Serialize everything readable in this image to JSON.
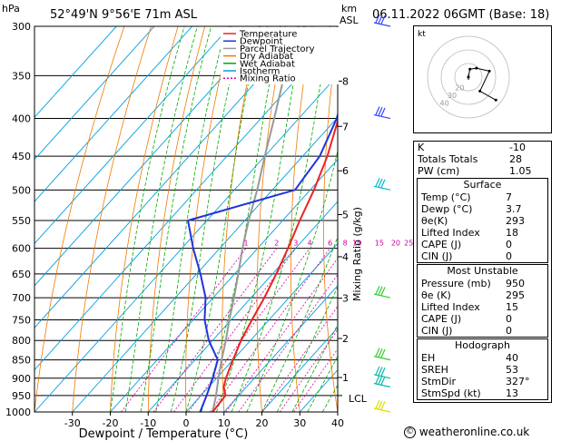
{
  "header": {
    "pressure_unit": "hPa",
    "location": "52°49'N  9°56'E  71m  ASL",
    "height_unit": "km",
    "height_unit_sub": "ASL",
    "datetime": "06.11.2022  06GMT  (Base: 18)"
  },
  "legend": [
    {
      "label": "Temperature",
      "color": "#ee2222",
      "dash": ""
    },
    {
      "label": "Dewpoint",
      "color": "#2233dd",
      "dash": ""
    },
    {
      "label": "Parcel Trajectory",
      "color": "#999999",
      "dash": ""
    },
    {
      "label": "Dry Adiabat",
      "color": "#f07a00",
      "dash": ""
    },
    {
      "label": "Wet Adiabat",
      "color": "#00aa00",
      "dash": ""
    },
    {
      "label": "Isotherm",
      "color": "#00a0e0",
      "dash": ""
    },
    {
      "label": "Mixing Ratio",
      "color": "#d000a0",
      "dash": "2,2"
    }
  ],
  "chart_data": {
    "type": "line",
    "xlabel": "Dewpoint / Temperature (°C)",
    "ylabel": "",
    "right_axis_label": "Mixing Ratio (g/kg)",
    "x_ticks": [
      -30,
      -20,
      -10,
      0,
      10,
      20,
      30,
      40
    ],
    "xlim": [
      -40,
      40
    ],
    "pressure_levels": [
      300,
      350,
      400,
      450,
      500,
      550,
      600,
      650,
      700,
      750,
      800,
      850,
      900,
      950,
      1000
    ],
    "ylim_hpa": [
      1000,
      300
    ],
    "height_ticks_km": [
      {
        "label": "8",
        "p": 356
      },
      {
        "label": "7",
        "p": 410
      },
      {
        "label": "6",
        "p": 471
      },
      {
        "label": "5",
        "p": 540
      },
      {
        "label": "4",
        "p": 616
      },
      {
        "label": "3",
        "p": 701
      },
      {
        "label": "2",
        "p": 795
      },
      {
        "label": "1",
        "p": 898
      }
    ],
    "lcl": {
      "label": "LCL",
      "p": 950
    },
    "mixing_ratio_labels": [
      "1",
      "2",
      "3",
      "4",
      "6",
      "8",
      "10",
      "15",
      "20",
      "25"
    ],
    "temperature": {
      "name": "Temperature",
      "points": [
        [
          1000,
          7
        ],
        [
          950,
          6.5
        ],
        [
          925,
          4
        ],
        [
          900,
          2.5
        ],
        [
          850,
          0
        ],
        [
          800,
          -2.5
        ],
        [
          750,
          -4.5
        ],
        [
          700,
          -6.5
        ],
        [
          650,
          -9
        ],
        [
          600,
          -12
        ],
        [
          550,
          -15.5
        ],
        [
          500,
          -19
        ],
        [
          450,
          -23.5
        ],
        [
          400,
          -29.5
        ],
        [
          350,
          -36
        ],
        [
          300,
          -44
        ]
      ]
    },
    "dewpoint": {
      "name": "Dewpoint",
      "points": [
        [
          1000,
          3.7
        ],
        [
          950,
          1.5
        ],
        [
          900,
          -1
        ],
        [
          850,
          -4
        ],
        [
          800,
          -11
        ],
        [
          750,
          -17
        ],
        [
          700,
          -22
        ],
        [
          650,
          -29
        ],
        [
          600,
          -37
        ],
        [
          550,
          -45
        ],
        [
          500,
          -24
        ],
        [
          450,
          -25.5
        ],
        [
          400,
          -30
        ],
        [
          350,
          -37
        ],
        [
          300,
          -45
        ]
      ]
    },
    "parcel": {
      "name": "Parcel Trajectory",
      "points": [
        [
          1000,
          7
        ],
        [
          950,
          4
        ],
        [
          900,
          0.5
        ],
        [
          850,
          -3
        ],
        [
          800,
          -6.5
        ],
        [
          750,
          -10.5
        ],
        [
          700,
          -14.5
        ],
        [
          650,
          -19
        ],
        [
          600,
          -24
        ],
        [
          550,
          -29
        ],
        [
          500,
          -34
        ],
        [
          450,
          -40
        ],
        [
          400,
          -46.5
        ],
        [
          350,
          -54
        ],
        [
          300,
          -62
        ]
      ]
    }
  },
  "hodograph": {
    "unit_label": "kt",
    "ring_labels": [
      "40",
      "30",
      "20"
    ],
    "trace": [
      [
        0,
        0
      ],
      [
        0.3,
        -1.6
      ],
      [
        1.6,
        -1.8
      ],
      [
        4.2,
        -1.2
      ],
      [
        2.3,
        2.8
      ],
      [
        5.5,
        4.6
      ]
    ]
  },
  "indices": [
    {
      "label": "K",
      "value": "-10"
    },
    {
      "label": "Totals Totals",
      "value": "28"
    },
    {
      "label": "PW (cm)",
      "value": "1.05"
    }
  ],
  "surface": {
    "title": "Surface",
    "rows": [
      {
        "label": "Temp (°C)",
        "value": "7"
      },
      {
        "label": "Dewp (°C)",
        "value": "3.7"
      },
      {
        "label": "θe(K)",
        "value": "293"
      },
      {
        "label": "Lifted Index",
        "value": "18"
      },
      {
        "label": "CAPE (J)",
        "value": "0"
      },
      {
        "label": "CIN (J)",
        "value": "0"
      }
    ]
  },
  "most_unstable": {
    "title": "Most Unstable",
    "rows": [
      {
        "label": "Pressure (mb)",
        "value": "950"
      },
      {
        "label": "θe (K)",
        "value": "295"
      },
      {
        "label": "Lifted Index",
        "value": "15"
      },
      {
        "label": "CAPE (J)",
        "value": "0"
      },
      {
        "label": "CIN (J)",
        "value": "0"
      }
    ]
  },
  "hodograph_table": {
    "title": "Hodograph",
    "rows": [
      {
        "label": "EH",
        "value": "40"
      },
      {
        "label": "SREH",
        "value": "53"
      },
      {
        "label": "StmDir",
        "value": "327°"
      },
      {
        "label": "StmSpd (kt)",
        "value": "13"
      }
    ]
  },
  "wind_barbs": [
    {
      "p": 300,
      "color": "#3344ff"
    },
    {
      "p": 400,
      "color": "#3344ff"
    },
    {
      "p": 500,
      "color": "#00bbcc"
    },
    {
      "p": 700,
      "color": "#33cc33"
    },
    {
      "p": 850,
      "color": "#33cc33"
    },
    {
      "p": 900,
      "color": "#00bbaa"
    },
    {
      "p": 925,
      "color": "#00bbaa"
    },
    {
      "p": 1000,
      "color": "#dddd00"
    }
  ],
  "footer": {
    "copyright": "©",
    "site": "weatheronline.co.uk"
  }
}
